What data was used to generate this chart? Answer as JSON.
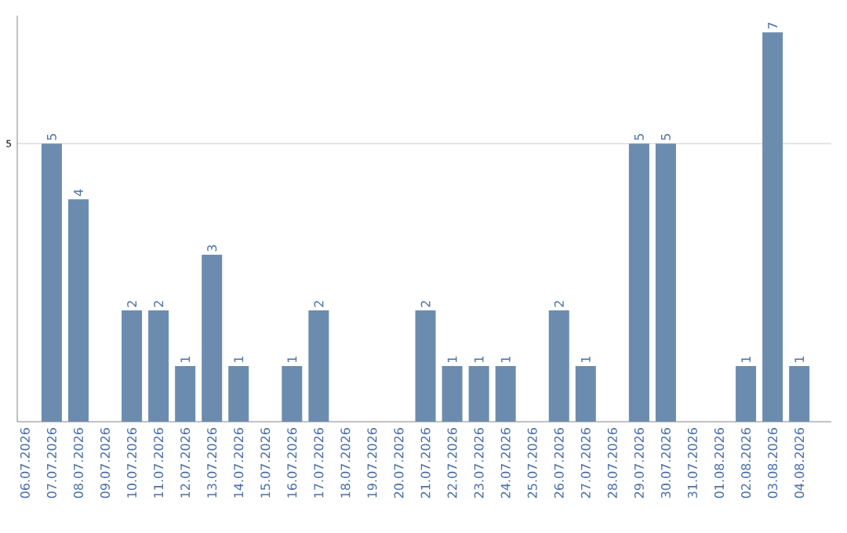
{
  "chart_data": {
    "type": "bar",
    "categories": [
      "06.07.2026",
      "07.07.2026",
      "08.07.2026",
      "09.07.2026",
      "10.07.2026",
      "11.07.2026",
      "12.07.2026",
      "13.07.2026",
      "14.07.2026",
      "15.07.2026",
      "16.07.2026",
      "17.07.2026",
      "18.07.2026",
      "19.07.2026",
      "20.07.2026",
      "21.07.2026",
      "22.07.2026",
      "23.07.2026",
      "24.07.2026",
      "25.07.2026",
      "26.07.2026",
      "27.07.2026",
      "28.07.2026",
      "29.07.2026",
      "30.07.2026",
      "31.07.2026",
      "01.08.2026",
      "02.08.2026",
      "03.08.2026",
      "04.08.2026"
    ],
    "values": [
      0,
      5,
      4,
      0,
      2,
      2,
      1,
      3,
      1,
      0,
      1,
      2,
      0,
      0,
      0,
      2,
      1,
      1,
      1,
      0,
      2,
      1,
      0,
      5,
      5,
      0,
      0,
      1,
      7,
      1
    ],
    "value_labels": [
      null,
      "5",
      "4",
      null,
      "2",
      "2",
      "1",
      "3",
      "1",
      null,
      "1",
      "2",
      null,
      null,
      null,
      "2",
      "1",
      "1",
      "1",
      null,
      "2",
      "1",
      null,
      "5",
      "5",
      null,
      null,
      "1",
      "7",
      "1"
    ],
    "color": "#6b8cae",
    "ylim": [
      0,
      7.3
    ],
    "yticks": [
      5
    ],
    "grid": "y"
  }
}
